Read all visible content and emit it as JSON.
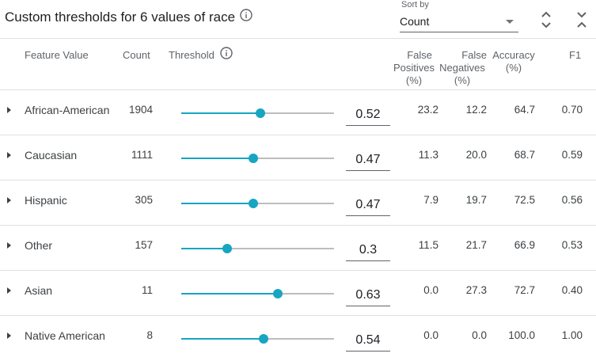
{
  "header": {
    "title": "Custom thresholds for 6 values of race",
    "sort_by_label": "Sort by",
    "sort_value": "Count"
  },
  "columns": {
    "feature_value": "Feature Value",
    "count": "Count",
    "threshold": "Threshold",
    "false_positives": [
      "False",
      "Positives",
      "(%)"
    ],
    "false_negatives": [
      "False",
      "Negatives",
      "(%)"
    ],
    "accuracy": [
      "Accuracy",
      "(%)"
    ],
    "f1": "F1"
  },
  "rows": [
    {
      "name": "African-American",
      "count": "1904",
      "threshold": "0.52",
      "threshold_value": 0.52,
      "fp": "23.2",
      "fn": "12.2",
      "acc": "64.7",
      "f1": "0.70"
    },
    {
      "name": "Caucasian",
      "count": "1111",
      "threshold": "0.47",
      "threshold_value": 0.47,
      "fp": "11.3",
      "fn": "20.0",
      "acc": "68.7",
      "f1": "0.59"
    },
    {
      "name": "Hispanic",
      "count": "305",
      "threshold": "0.47",
      "threshold_value": 0.47,
      "fp": "7.9",
      "fn": "19.7",
      "acc": "72.5",
      "f1": "0.56"
    },
    {
      "name": "Other",
      "count": "157",
      "threshold": "0.3",
      "threshold_value": 0.3,
      "fp": "11.5",
      "fn": "21.7",
      "acc": "66.9",
      "f1": "0.53"
    },
    {
      "name": "Asian",
      "count": "11",
      "threshold": "0.63",
      "threshold_value": 0.63,
      "fp": "0.0",
      "fn": "27.3",
      "acc": "72.7",
      "f1": "0.40"
    },
    {
      "name": "Native American",
      "count": "8",
      "threshold": "0.54",
      "threshold_value": 0.54,
      "fp": "0.0",
      "fn": "0.0",
      "acc": "100.0",
      "f1": "1.00"
    }
  ],
  "colors": {
    "accent": "#17a5c2",
    "track": "#bdbdbd"
  }
}
